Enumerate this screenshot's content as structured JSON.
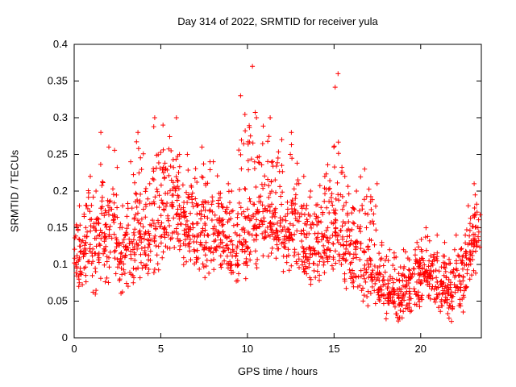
{
  "chart_data": {
    "type": "scatter",
    "title": "Day 314 of 2022, SRMTID for receiver yula",
    "xlabel": "GPS time / hours",
    "ylabel": "SRMTID / TECUs",
    "xlim": [
      0,
      23.5
    ],
    "ylim": [
      0,
      0.4
    ],
    "xticks": [
      0,
      5,
      10,
      15,
      20
    ],
    "xtick_labels": [
      "0",
      "5",
      "10",
      "15",
      "20"
    ],
    "yticks": [
      0,
      0.05,
      0.1,
      0.15,
      0.2,
      0.25,
      0.3,
      0.35,
      0.4
    ],
    "ytick_labels": [
      "0",
      "0.05",
      "0.1",
      "0.15",
      "0.2",
      "0.25",
      "0.3",
      "0.35",
      "0.4"
    ],
    "grid": false,
    "legend": "none",
    "marker": "plus",
    "marker_color": "#ff0000",
    "border_color": "#000000",
    "density_bins": {
      "description": "Scatter density envelope read from plot; per half-hour bin of GPS time",
      "bin_width_hours": 0.5,
      "columns": [
        "x_start",
        "y_min",
        "y_max",
        "y_mean",
        "count"
      ],
      "rows": [
        [
          0.0,
          0.06,
          0.18,
          0.11,
          40
        ],
        [
          0.5,
          0.07,
          0.22,
          0.13,
          40
        ],
        [
          1.0,
          0.05,
          0.2,
          0.12,
          40
        ],
        [
          1.5,
          0.04,
          0.28,
          0.15,
          42
        ],
        [
          2.0,
          0.07,
          0.26,
          0.14,
          40
        ],
        [
          2.5,
          0.05,
          0.18,
          0.11,
          38
        ],
        [
          3.0,
          0.06,
          0.24,
          0.13,
          40
        ],
        [
          3.5,
          0.07,
          0.28,
          0.15,
          42
        ],
        [
          4.0,
          0.07,
          0.21,
          0.12,
          40
        ],
        [
          4.5,
          0.08,
          0.3,
          0.16,
          42
        ],
        [
          5.0,
          0.1,
          0.29,
          0.18,
          44
        ],
        [
          5.5,
          0.1,
          0.3,
          0.19,
          44
        ],
        [
          6.0,
          0.09,
          0.25,
          0.16,
          42
        ],
        [
          6.5,
          0.08,
          0.25,
          0.15,
          40
        ],
        [
          7.0,
          0.08,
          0.26,
          0.15,
          42
        ],
        [
          7.5,
          0.07,
          0.24,
          0.14,
          40
        ],
        [
          8.0,
          0.08,
          0.24,
          0.15,
          42
        ],
        [
          8.5,
          0.07,
          0.21,
          0.13,
          40
        ],
        [
          9.0,
          0.06,
          0.2,
          0.12,
          40
        ],
        [
          9.5,
          0.07,
          0.33,
          0.15,
          42
        ],
        [
          10.0,
          0.08,
          0.37,
          0.17,
          44
        ],
        [
          10.5,
          0.09,
          0.3,
          0.16,
          42
        ],
        [
          11.0,
          0.09,
          0.3,
          0.17,
          44
        ],
        [
          11.5,
          0.08,
          0.27,
          0.15,
          42
        ],
        [
          12.0,
          0.08,
          0.25,
          0.14,
          40
        ],
        [
          12.5,
          0.07,
          0.28,
          0.15,
          42
        ],
        [
          13.0,
          0.07,
          0.22,
          0.13,
          40
        ],
        [
          13.5,
          0.06,
          0.2,
          0.12,
          38
        ],
        [
          14.0,
          0.07,
          0.22,
          0.13,
          40
        ],
        [
          14.5,
          0.07,
          0.26,
          0.13,
          40
        ],
        [
          15.0,
          0.07,
          0.36,
          0.15,
          44
        ],
        [
          15.5,
          0.06,
          0.22,
          0.13,
          40
        ],
        [
          16.0,
          0.05,
          0.2,
          0.11,
          38
        ],
        [
          16.5,
          0.04,
          0.23,
          0.1,
          40
        ],
        [
          17.0,
          0.04,
          0.21,
          0.09,
          40
        ],
        [
          17.5,
          0.03,
          0.13,
          0.07,
          40
        ],
        [
          18.0,
          0.02,
          0.12,
          0.06,
          42
        ],
        [
          18.5,
          0.02,
          0.11,
          0.06,
          42
        ],
        [
          19.0,
          0.03,
          0.12,
          0.07,
          42
        ],
        [
          19.5,
          0.03,
          0.13,
          0.08,
          40
        ],
        [
          20.0,
          0.04,
          0.15,
          0.09,
          42
        ],
        [
          20.5,
          0.04,
          0.14,
          0.08,
          40
        ],
        [
          21.0,
          0.03,
          0.13,
          0.07,
          40
        ],
        [
          21.5,
          0.02,
          0.12,
          0.06,
          42
        ],
        [
          22.0,
          0.03,
          0.14,
          0.08,
          40
        ],
        [
          22.5,
          0.05,
          0.18,
          0.11,
          40
        ],
        [
          23.0,
          0.08,
          0.21,
          0.14,
          36
        ]
      ]
    }
  }
}
